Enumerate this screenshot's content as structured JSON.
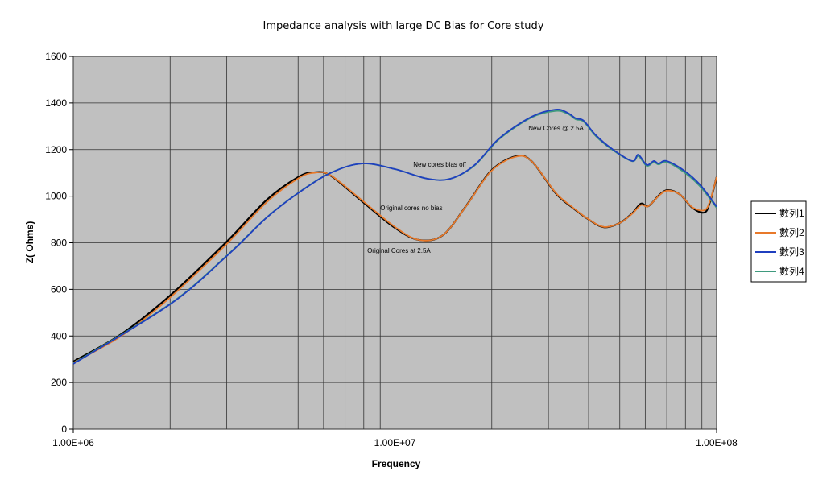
{
  "chart_data": {
    "type": "line",
    "title": "Impedance analysis with large DC Bias for Core study",
    "xlabel": "Frequency",
    "ylabel": "Z( Ohms)",
    "xscale": "log",
    "xlim": [
      1000000,
      100000000
    ],
    "ylim": [
      0,
      1600
    ],
    "xticks": [
      1000000,
      10000000,
      100000000
    ],
    "xtick_labels": [
      "1.00E+06",
      "1.00E+07",
      "1.00E+08"
    ],
    "yticks": [
      0,
      200,
      400,
      600,
      800,
      1000,
      1200,
      1400,
      1600
    ],
    "ytick_labels": [
      "0",
      "200",
      "400",
      "600",
      "800",
      "1000",
      "1200",
      "1400",
      "1600"
    ],
    "grid": true,
    "legend_position": "right",
    "background": "#c0c0c0",
    "series": [
      {
        "name": "數列1",
        "color": "#000000",
        "x": [
          1000000.0,
          1410000.0,
          2000000.0,
          3000000.0,
          4000000.0,
          5000000.0,
          5600000.0,
          6300000.0,
          7900000.0,
          10000000.0,
          11900000.0,
          14100000.0,
          16700000.0,
          19900000.0,
          23700000.0,
          26600000.0,
          31600000.0,
          35400000.0,
          39800000.0,
          44600000.0,
          50000000.0,
          54600000.0,
          58200000.0,
          61300000.0,
          66800000.0,
          70800000.0,
          77100000.0,
          84100000.0,
          91700000.0,
          95500000.0,
          100000000.0
        ],
        "y": [
          290,
          408,
          574,
          805,
          985,
          1082,
          1102,
          1089,
          978,
          864,
          812,
          833,
          961,
          1109,
          1171,
          1150,
          1013,
          954,
          902,
          867,
          885,
          926,
          968,
          957,
          1009,
          1026,
          1006,
          950,
          930,
          978,
          1082
        ]
      },
      {
        "name": "數列2",
        "color": "#e8792a",
        "x": [
          1000000.0,
          1410000.0,
          2000000.0,
          3000000.0,
          4000000.0,
          5000000.0,
          5600000.0,
          6300000.0,
          7900000.0,
          10000000.0,
          11900000.0,
          14100000.0,
          16700000.0,
          19900000.0,
          23700000.0,
          26600000.0,
          31600000.0,
          35400000.0,
          39800000.0,
          44600000.0,
          50000000.0,
          54600000.0,
          58200000.0,
          61300000.0,
          66800000.0,
          70800000.0,
          77100000.0,
          84100000.0,
          91700000.0,
          95500000.0,
          100000000.0
        ],
        "y": [
          285,
          400,
          565,
          795,
          975,
          1076,
          1100,
          1090,
          982,
          868,
          812,
          833,
          960,
          1107,
          1169,
          1150,
          1015,
          956,
          903,
          868,
          885,
          924,
          962,
          957,
          1007,
          1024,
          1006,
          952,
          940,
          982,
          1082
        ]
      },
      {
        "name": "數列3",
        "color": "#1f3fbf",
        "x": [
          1000000.0,
          2000000.0,
          3000000.0,
          4000000.0,
          5000000.0,
          6300000.0,
          7900000.0,
          10000000.0,
          12600000.0,
          14900000.0,
          17700000.0,
          21100000.0,
          26600000.0,
          31600000.0,
          34400000.0,
          36500000.0,
          38600000.0,
          42100000.0,
          47300000.0,
          54600000.0,
          57100000.0,
          60600000.0,
          63800000.0,
          66000000.0,
          70000000.0,
          79400000.0,
          89100000.0,
          100000000.0
        ],
        "y": [
          280,
          536,
          743,
          909,
          1013,
          1099,
          1140,
          1116,
          1075,
          1075,
          1134,
          1248,
          1341,
          1372,
          1358,
          1334,
          1324,
          1262,
          1203,
          1151,
          1178,
          1134,
          1151,
          1140,
          1151,
          1109,
          1047,
          955
        ]
      },
      {
        "name": "數列4",
        "color": "#3f9a7e",
        "x": [
          1000000.0,
          2000000.0,
          3000000.0,
          4000000.0,
          5000000.0,
          6300000.0,
          7900000.0,
          10000000.0,
          12600000.0,
          14900000.0,
          17700000.0,
          21100000.0,
          26600000.0,
          31600000.0,
          34400000.0,
          36500000.0,
          38600000.0,
          42100000.0,
          47300000.0,
          54600000.0,
          57100000.0,
          60600000.0,
          63800000.0,
          66000000.0,
          70000000.0,
          79400000.0,
          89100000.0,
          100000000.0
        ],
        "y": [
          282,
          538,
          745,
          910,
          1014,
          1100,
          1140,
          1116,
          1075,
          1075,
          1132,
          1245,
          1338,
          1366,
          1354,
          1330,
          1320,
          1258,
          1200,
          1150,
          1172,
          1130,
          1146,
          1136,
          1146,
          1102,
          1040,
          950
        ]
      }
    ],
    "annotations": [
      {
        "text": "New Cores @ 2.5A",
        "x": 26000000.0,
        "y": 1282
      },
      {
        "text": "New cores bias off",
        "x": 11400000.0,
        "y": 1127
      },
      {
        "text": "Original cores no bias",
        "x": 9000000.0,
        "y": 940
      },
      {
        "text": "Original Cores at 2.5A",
        "x": 8200000.0,
        "y": 757
      }
    ]
  }
}
